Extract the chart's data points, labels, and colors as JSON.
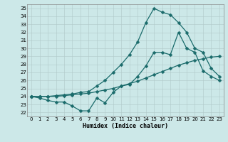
{
  "xlabel": "Humidex (Indice chaleur)",
  "bg_color": "#cce8e8",
  "grid_color": "#b0c8c8",
  "line_color": "#1a6b6b",
  "xlim": [
    -0.5,
    23.5
  ],
  "ylim": [
    21.5,
    35.5
  ],
  "xticks": [
    0,
    1,
    2,
    3,
    4,
    5,
    6,
    7,
    8,
    9,
    10,
    11,
    12,
    13,
    14,
    15,
    16,
    17,
    18,
    19,
    20,
    21,
    22,
    23
  ],
  "yticks": [
    22,
    23,
    24,
    25,
    26,
    27,
    28,
    29,
    30,
    31,
    32,
    33,
    34,
    35
  ],
  "line1_x": [
    0,
    1,
    2,
    3,
    4,
    5,
    6,
    7,
    8,
    9,
    10,
    11,
    12,
    13,
    14,
    15,
    16,
    17,
    18,
    19,
    20,
    21,
    22,
    23
  ],
  "line1_y": [
    24.0,
    23.8,
    23.5,
    23.3,
    23.3,
    22.8,
    22.2,
    22.2,
    23.8,
    23.2,
    24.5,
    25.3,
    25.5,
    26.5,
    27.8,
    29.5,
    29.5,
    29.2,
    32.0,
    30.0,
    29.5,
    27.2,
    26.5,
    26.0
  ],
  "line2_x": [
    0,
    1,
    2,
    3,
    4,
    5,
    6,
    7,
    8,
    9,
    10,
    11,
    12,
    13,
    14,
    15,
    16,
    17,
    18,
    19,
    20,
    21,
    22,
    23
  ],
  "line2_y": [
    24.0,
    24.0,
    24.0,
    24.0,
    24.1,
    24.2,
    24.3,
    24.4,
    24.6,
    24.8,
    25.0,
    25.3,
    25.6,
    25.9,
    26.3,
    26.7,
    27.1,
    27.5,
    27.9,
    28.2,
    28.5,
    28.7,
    28.9,
    29.0
  ],
  "line3_x": [
    0,
    1,
    2,
    3,
    4,
    5,
    6,
    7,
    8,
    9,
    10,
    11,
    12,
    13,
    14,
    15,
    16,
    17,
    18,
    19,
    20,
    21,
    22,
    23
  ],
  "line3_y": [
    24.0,
    24.0,
    24.0,
    24.1,
    24.2,
    24.3,
    24.5,
    24.6,
    25.3,
    26.0,
    27.0,
    28.0,
    29.2,
    30.8,
    33.2,
    35.0,
    34.5,
    34.2,
    33.2,
    32.0,
    30.0,
    29.5,
    27.5,
    26.5
  ]
}
